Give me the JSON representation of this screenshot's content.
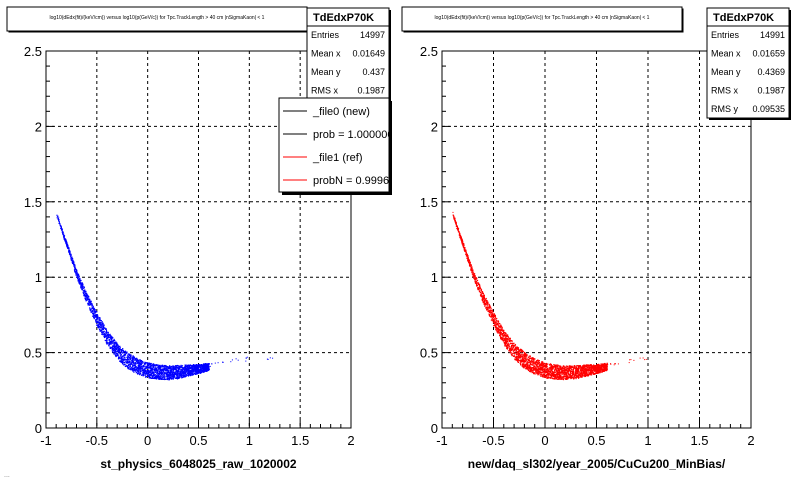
{
  "canvas_footer": "...",
  "chart_data": [
    {
      "type": "scatter",
      "title": "log10(dEdx(fit)/(keV/cm)) versus log10(p(GeV/c)) for Tpc.TrackLength > 40 cm |nSigmaKaon| < 1",
      "xlabel": "st_physics_6048025_raw_1020002",
      "ylabel": "",
      "xlim": [
        -1,
        2
      ],
      "ylim": [
        0,
        2.5
      ],
      "xticks": [
        "-1",
        "-0.5",
        "0",
        "0.5",
        "1",
        "1.5",
        "2"
      ],
      "yticks": [
        "0",
        "0.5",
        "1",
        "1.5",
        "2",
        "2.5"
      ],
      "grid": true,
      "marker_color": "#0000ff",
      "band": {
        "x_start": -0.9,
        "x_end": 0.6,
        "centre": [
          [
            -0.9,
            1.42
          ],
          [
            -0.8,
            1.22
          ],
          [
            -0.7,
            1.02
          ],
          [
            -0.6,
            0.86
          ],
          [
            -0.5,
            0.72
          ],
          [
            -0.4,
            0.6
          ],
          [
            -0.3,
            0.51
          ],
          [
            -0.2,
            0.45
          ],
          [
            -0.1,
            0.41
          ],
          [
            0.0,
            0.385
          ],
          [
            0.1,
            0.375
          ],
          [
            0.2,
            0.37
          ],
          [
            0.3,
            0.375
          ],
          [
            0.4,
            0.385
          ],
          [
            0.5,
            0.395
          ],
          [
            0.6,
            0.41
          ]
        ],
        "halfwidth": [
          [
            -0.9,
            0.0
          ],
          [
            -0.5,
            0.04
          ],
          [
            -0.2,
            0.05
          ],
          [
            0.3,
            0.04
          ],
          [
            0.6,
            0.02
          ]
        ],
        "sparse_tail": [
          [
            0.6,
            0.42
          ],
          [
            0.7,
            0.43
          ],
          [
            0.85,
            0.45
          ],
          [
            1.0,
            0.46
          ],
          [
            1.2,
            0.47
          ]
        ]
      },
      "stats": {
        "title": "TdEdxP70K",
        "rows": [
          {
            "label": "Entries",
            "value": "14997"
          },
          {
            "label": "Mean x",
            "value": "0.01649"
          },
          {
            "label": "Mean y",
            "value": "0.437"
          },
          {
            "label": "RMS x",
            "value": "0.1987"
          }
        ]
      },
      "legend": {
        "placement": "top-right",
        "entries": [
          {
            "label": "_file0 (new)",
            "color": "#000000"
          },
          {
            "label": "prob = 1.000000",
            "color": "#000000"
          },
          {
            "label": "_file1 (ref)",
            "color": "#ff0000"
          },
          {
            "label": "probN = 0.999614",
            "color": "#ff0000"
          }
        ]
      }
    },
    {
      "type": "scatter",
      "title": "log10(dEdx(fit)/(keV/cm)) versus log10(p(GeV/c)) for Tpc.TrackLength > 40 cm |nSigmaKaon| < 1",
      "xlabel": "new/daq_sl302/year_2005/CuCu200_MinBias/",
      "ylabel": "",
      "xlim": [
        -1,
        2
      ],
      "ylim": [
        0,
        2.5
      ],
      "xticks": [
        "-1",
        "-0.5",
        "0",
        "0.5",
        "1",
        "1.5",
        "2"
      ],
      "yticks": [
        "0",
        "0.5",
        "1",
        "1.5",
        "2",
        "2.5"
      ],
      "grid": true,
      "marker_color": "#ff0000",
      "band": {
        "x_start": -0.9,
        "x_end": 0.6,
        "centre": [
          [
            -0.9,
            1.42
          ],
          [
            -0.8,
            1.22
          ],
          [
            -0.7,
            1.02
          ],
          [
            -0.6,
            0.86
          ],
          [
            -0.5,
            0.72
          ],
          [
            -0.4,
            0.6
          ],
          [
            -0.3,
            0.51
          ],
          [
            -0.2,
            0.45
          ],
          [
            -0.1,
            0.41
          ],
          [
            0.0,
            0.385
          ],
          [
            0.1,
            0.375
          ],
          [
            0.2,
            0.37
          ],
          [
            0.3,
            0.375
          ],
          [
            0.4,
            0.385
          ],
          [
            0.5,
            0.395
          ],
          [
            0.6,
            0.41
          ]
        ],
        "halfwidth": [
          [
            -0.9,
            0.0
          ],
          [
            -0.5,
            0.04
          ],
          [
            -0.2,
            0.05
          ],
          [
            0.3,
            0.04
          ],
          [
            0.6,
            0.02
          ]
        ],
        "sparse_tail": [
          [
            0.6,
            0.42
          ],
          [
            0.7,
            0.43
          ],
          [
            0.85,
            0.45
          ],
          [
            0.95,
            0.46
          ]
        ]
      },
      "stats": {
        "title": "TdEdxP70K",
        "rows": [
          {
            "label": "Entries",
            "value": "14991"
          },
          {
            "label": "Mean x",
            "value": "0.01659"
          },
          {
            "label": "Mean y",
            "value": "0.4369"
          },
          {
            "label": "RMS x",
            "value": "0.1987"
          },
          {
            "label": "RMS y",
            "value": "0.09535"
          }
        ]
      }
    }
  ]
}
